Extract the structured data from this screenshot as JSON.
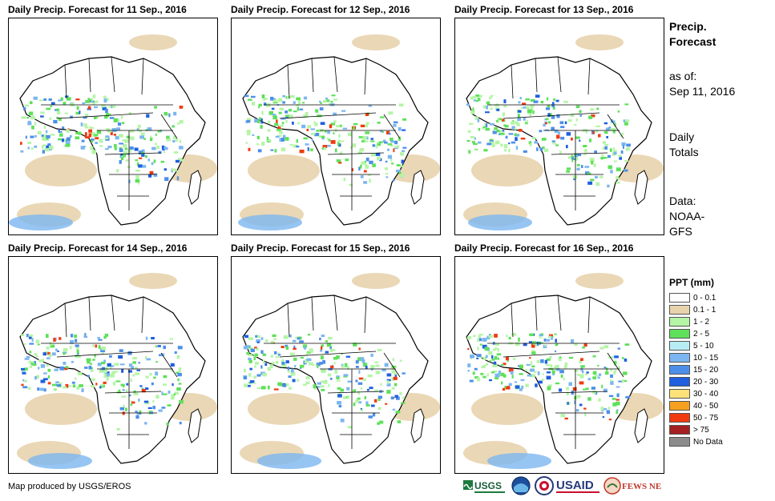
{
  "panels": [
    {
      "title": "Daily Precip. Forecast for 11 Sep., 2016"
    },
    {
      "title": "Daily Precip. Forecast for 12 Sep., 2016"
    },
    {
      "title": "Daily Precip. Forecast for 13 Sep., 2016"
    },
    {
      "title": "Daily Precip. Forecast for 14 Sep., 2016"
    },
    {
      "title": "Daily Precip. Forecast for 15 Sep., 2016"
    },
    {
      "title": "Daily Precip. Forecast for 16 Sep., 2016"
    }
  ],
  "sidebar": {
    "heading_line1": "Precip.",
    "heading_line2": "Forecast",
    "asof_line1": "as of:",
    "asof_line2": "Sep 11, 2016",
    "totals_line1": "Daily",
    "totals_line2": "Totals",
    "data_line1": "Data:",
    "data_line2": "NOAA-",
    "data_line3": "GFS"
  },
  "legend": {
    "title": "PPT (mm)",
    "items": [
      {
        "label": "0 - 0.1",
        "color": "#ffffff"
      },
      {
        "label": "0.1 - 1",
        "color": "#e8d3ad"
      },
      {
        "label": "1 - 2",
        "color": "#b4f5a6"
      },
      {
        "label": "2 - 5",
        "color": "#5ee05a"
      },
      {
        "label": "5 - 10",
        "color": "#b8ecf5"
      },
      {
        "label": "10 - 15",
        "color": "#7cb6f0"
      },
      {
        "label": "15 - 20",
        "color": "#4d8fe8"
      },
      {
        "label": "20 - 30",
        "color": "#1f5fe0"
      },
      {
        "label": "30 - 40",
        "color": "#fde27a"
      },
      {
        "label": "40 - 50",
        "color": "#f5a020"
      },
      {
        "label": "50 - 75",
        "color": "#f03a10"
      },
      {
        "label": "> 75",
        "color": "#a52020"
      },
      {
        "label": "No Data",
        "color": "#8c8c8c"
      }
    ]
  },
  "footer": {
    "credit": "Map produced by USGS/EROS",
    "logos": [
      "USGS",
      "NOAA",
      "USAID",
      "FEWS NET"
    ]
  }
}
